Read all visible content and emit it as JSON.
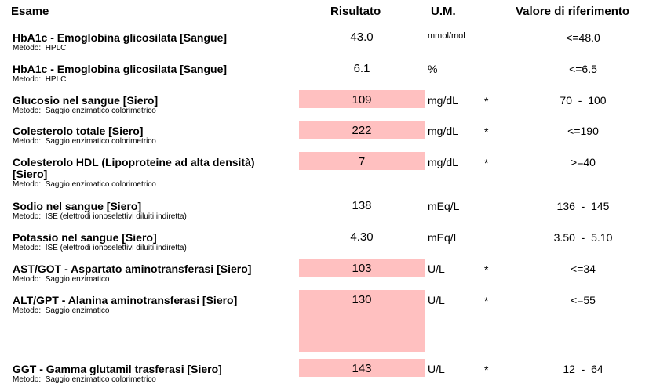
{
  "header": {
    "columns": [
      "Esame",
      "Risultato",
      "U.M.",
      "Valore di riferimento"
    ]
  },
  "table": {
    "rows": [
      {
        "name": "HbA1c - Emoglobina glicosilata [Sangue]",
        "method": "Metodo:  HPLC",
        "result": "43.0",
        "unit": "mmol/mol",
        "reference": "<=48.0"
      },
      {
        "name": "HbA1c - Emoglobina glicosilata [Sangue]",
        "method": "Metodo:  HPLC",
        "result": "6.1",
        "unit": "%",
        "reference": "<=6.5"
      },
      {
        "name": "Glucosio nel sangue [Siero]",
        "method": "Metodo:  Saggio enzimatico colorimetrico",
        "result": "109",
        "unit": "mg/dL",
        "flag": "*",
        "reference": "70  -  100"
      },
      {
        "name": "Colesterolo totale [Siero]",
        "method": "Metodo:  Saggio enzimatico colorimetrico",
        "result": "222",
        "unit": "mg/dL",
        "flag": "*",
        "reference": "<=190"
      },
      {
        "name": "Colesterolo HDL (Lipoproteine ad alta densità) [Siero]",
        "method": "Metodo:  Saggio enzimatico colorimetrico",
        "result": "7",
        "unit": "mg/dL",
        "flag": "*",
        "reference": ">=40"
      },
      {
        "name": "Sodio nel sangue [Siero]",
        "method": "Metodo:  ISE (elettrodi ionoselettivi diluiti indiretta)",
        "result": "138",
        "unit": "mEq/L",
        "reference": "136  -  145"
      },
      {
        "name": "Potassio nel sangue [Siero]",
        "method": "Metodo:  ISE (elettrodi ionoselettivi diluiti indiretta)",
        "result": "4.30",
        "unit": "mEq/L",
        "reference": "3.50  -  5.10"
      },
      {
        "name": "AST/GOT - Aspartato aminotransferasi [Siero]",
        "method": "Metodo:  Saggio enzimatico",
        "result": "103",
        "unit": "U/L",
        "flag": "*",
        "reference": "<=34"
      },
      {
        "name": "ALT/GPT - Alanina aminotransferasi [Siero]",
        "method": "Metodo:  Saggio enzimatico",
        "result": "130",
        "unit": "U/L",
        "flag": "*",
        "reference": "<=55"
      },
      {
        "name": "GGT - Gamma glutamil trasferasi [Siero]",
        "method": "Metodo:  Saggio enzimatico colorimetrico",
        "result": "143",
        "unit": "U/L",
        "flag": "*",
        "reference": "12  -  64"
      }
    ]
  }
}
